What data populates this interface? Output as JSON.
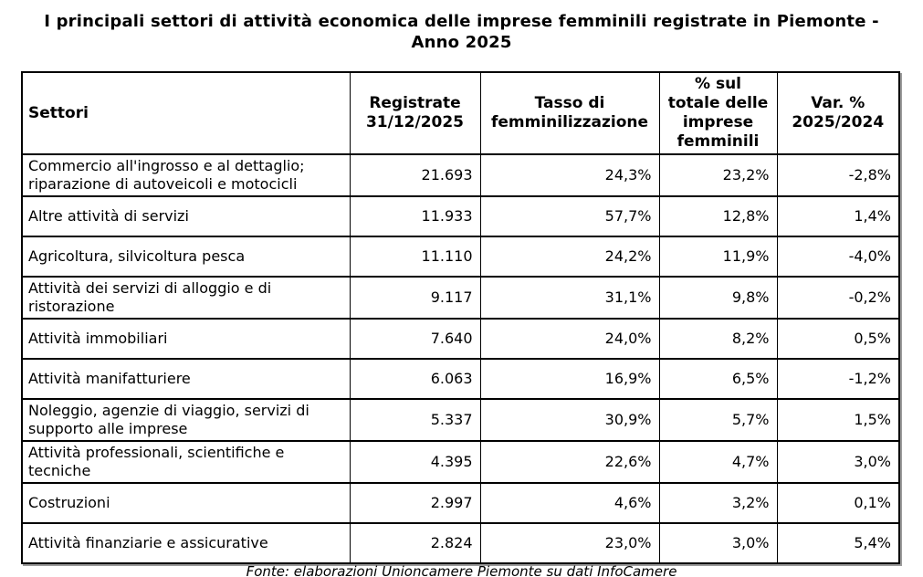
{
  "title": "I principali settori di attività economica delle imprese femminili registrate in Piemonte - Anno 2025",
  "table": {
    "columns": [
      "Settori",
      "Registrate\n31/12/2025",
      "Tasso di\nfemminilizzazione",
      "% sul\ntotale delle\nimprese\nfemminili",
      "Var. %\n2025/2024"
    ],
    "rows": [
      {
        "settore": "Commercio all'ingrosso e al dettaglio; riparazione di autoveicoli e motocicli",
        "registrate": "21.693",
        "tasso": "24,3%",
        "perc_totale": "23,2%",
        "var": "-2,8%"
      },
      {
        "settore": "Altre attività di servizi",
        "registrate": "11.933",
        "tasso": "57,7%",
        "perc_totale": "12,8%",
        "var": "1,4%"
      },
      {
        "settore": "Agricoltura, silvicoltura pesca",
        "registrate": "11.110",
        "tasso": "24,2%",
        "perc_totale": "11,9%",
        "var": "-4,0%"
      },
      {
        "settore": "Attività dei servizi di alloggio e di ristorazione",
        "registrate": "9.117",
        "tasso": "31,1%",
        "perc_totale": "9,8%",
        "var": "-0,2%"
      },
      {
        "settore": "Attività immobiliari",
        "registrate": "7.640",
        "tasso": "24,0%",
        "perc_totale": "8,2%",
        "var": "0,5%"
      },
      {
        "settore": "Attività manifatturiere",
        "registrate": "6.063",
        "tasso": "16,9%",
        "perc_totale": "6,5%",
        "var": "-1,2%"
      },
      {
        "settore": "Noleggio, agenzie di viaggio, servizi di supporto alle imprese",
        "registrate": "5.337",
        "tasso": "30,9%",
        "perc_totale": "5,7%",
        "var": "1,5%"
      },
      {
        "settore": "Attività professionali, scientifiche e tecniche",
        "registrate": "4.395",
        "tasso": "22,6%",
        "perc_totale": "4,7%",
        "var": "3,0%"
      },
      {
        "settore": "Costruzioni",
        "registrate": "2.997",
        "tasso": "4,6%",
        "perc_totale": "3,2%",
        "var": "0,1%"
      },
      {
        "settore": "Attività finanziarie e assicurative",
        "registrate": "2.824",
        "tasso": "23,0%",
        "perc_totale": "3,0%",
        "var": "5,4%"
      }
    ]
  },
  "footer": {
    "fonte": "Fonte: elaborazioni Unioncamere Piemonte su dati InfoCamere"
  },
  "colors": {
    "background": "#ffffff",
    "text": "#000000",
    "border": "#000000",
    "shadow": "#9b9b9b"
  }
}
